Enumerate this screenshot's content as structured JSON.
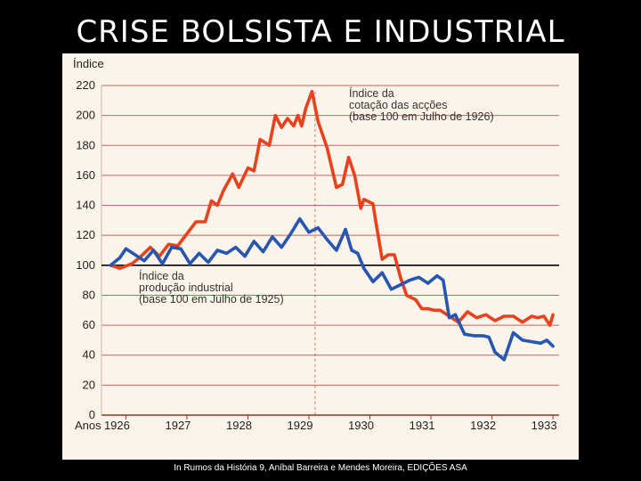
{
  "slide": {
    "title": "CRISE BOLSISTA E INDUSTRIAL",
    "caption": "In Rumos da História 9, Aníbal Barreira e Mendes Moreira, EDIÇÕES ASA"
  },
  "colors": {
    "background": "#000000",
    "chart_bg": "#fbf4ea",
    "stock": "#e8411c",
    "production": "#2756b0",
    "grid": "#b3281e",
    "baseline": "#000000"
  },
  "chart_data": {
    "type": "line",
    "ylabel": "Índice",
    "xlabel": "Anos",
    "ylim": [
      0,
      220
    ],
    "yticks": [
      0,
      20,
      40,
      60,
      80,
      100,
      120,
      140,
      160,
      180,
      200,
      220
    ],
    "xlim": [
      1926,
      1933.1
    ],
    "xticks": [
      1926,
      1927,
      1928,
      1929,
      1930,
      1931,
      1932,
      1933
    ],
    "x_tick_labels": [
      "1926",
      "1927",
      "1928",
      "1929",
      "1930",
      "1931",
      "1932",
      "1933"
    ],
    "grid": true,
    "reference_line_y": 100,
    "series": [
      {
        "name": "Índice da cotação das acções (base 100 em Julho de 1926)",
        "label_lines": [
          "Índice da",
          "cotação das acções",
          "(base 100 em Julho de 1926)"
        ],
        "color": "#e8411c",
        "x": [
          1925.75,
          1925.9,
          1926.1,
          1926.25,
          1926.4,
          1926.55,
          1926.7,
          1926.85,
          1927.0,
          1927.15,
          1927.3,
          1927.4,
          1927.5,
          1927.6,
          1927.75,
          1927.85,
          1928.0,
          1928.1,
          1928.2,
          1928.35,
          1928.45,
          1928.55,
          1928.65,
          1928.75,
          1928.82,
          1928.88,
          1928.95,
          1929.05,
          1929.15,
          1929.3,
          1929.45,
          1929.55,
          1929.65,
          1929.75,
          1929.85,
          1929.9,
          1930.05,
          1930.1,
          1930.2,
          1930.3,
          1930.4,
          1930.5,
          1930.6,
          1930.75,
          1930.85,
          1930.95,
          1931.05,
          1931.15,
          1931.3,
          1931.45,
          1931.6,
          1931.75,
          1931.9,
          1932.05,
          1932.2,
          1932.35,
          1932.5,
          1932.65,
          1932.75,
          1932.85,
          1932.95,
          1933.0
        ],
        "values": [
          100,
          98,
          101,
          106,
          112,
          106,
          114,
          113,
          121,
          129,
          129,
          143,
          140,
          150,
          161,
          152,
          165,
          163,
          184,
          180,
          200,
          192,
          198,
          193,
          200,
          193,
          205,
          216,
          196,
          178,
          152,
          154,
          172,
          160,
          138,
          144,
          141,
          128,
          104,
          107,
          107,
          92,
          80,
          77,
          71,
          71,
          70,
          70,
          66,
          62,
          69,
          65,
          67,
          63,
          66,
          66,
          62,
          66,
          65,
          66,
          60,
          67
        ]
      },
      {
        "name": "Índice da produção industrial (base 100 em Julho de 1925)",
        "label_lines": [
          "Índice da",
          "produção industrial",
          "(base 100 em Julho de 1925)"
        ],
        "color": "#2756b0",
        "x": [
          1925.75,
          1925.9,
          1926.0,
          1926.15,
          1926.3,
          1926.45,
          1926.6,
          1926.75,
          1926.9,
          1927.05,
          1927.2,
          1927.35,
          1927.5,
          1927.65,
          1927.8,
          1927.95,
          1928.1,
          1928.25,
          1928.4,
          1928.55,
          1928.7,
          1928.85,
          1929.0,
          1929.15,
          1929.3,
          1929.45,
          1929.6,
          1929.7,
          1929.8,
          1929.9,
          1930.05,
          1930.2,
          1930.35,
          1930.5,
          1930.65,
          1930.8,
          1930.95,
          1931.1,
          1931.2,
          1931.3,
          1931.4,
          1931.55,
          1931.7,
          1931.85,
          1931.95,
          1932.05,
          1932.2,
          1932.35,
          1932.5,
          1932.65,
          1932.8,
          1932.9,
          1933.0
        ],
        "values": [
          100,
          105,
          111,
          107,
          103,
          110,
          101,
          112,
          111,
          101,
          108,
          102,
          110,
          108,
          112,
          106,
          116,
          109,
          119,
          112,
          121,
          131,
          122,
          125,
          117,
          110,
          124,
          110,
          108,
          98,
          89,
          95,
          84,
          87,
          90,
          92,
          88,
          93,
          90,
          65,
          67,
          54,
          53,
          53,
          52,
          42,
          37,
          55,
          50,
          49,
          48,
          50,
          46
        ]
      }
    ]
  }
}
